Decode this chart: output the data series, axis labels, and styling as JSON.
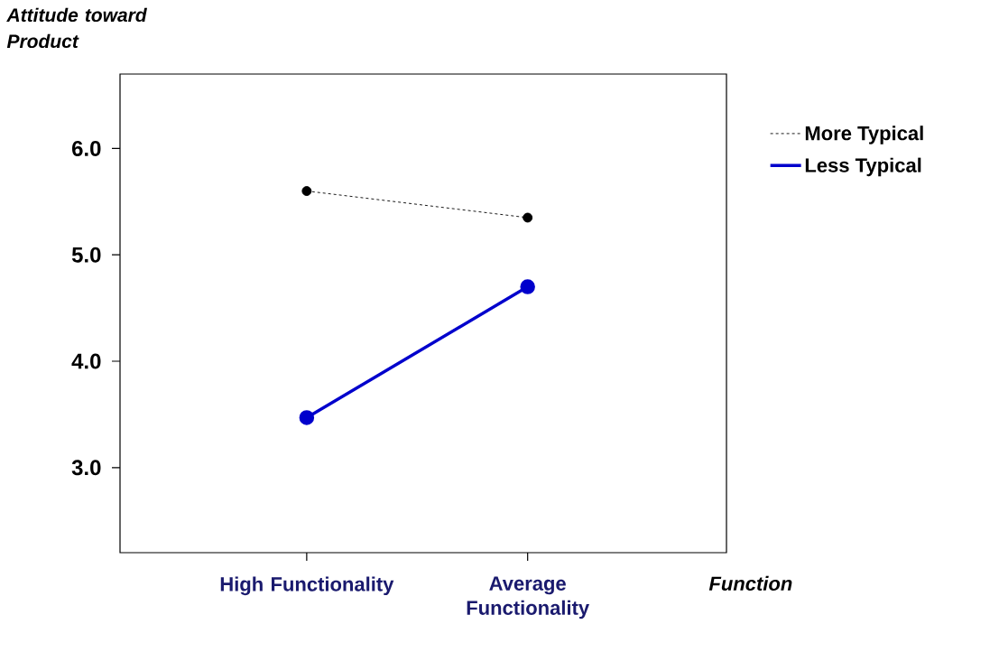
{
  "chart_data": {
    "type": "line",
    "ylabel": "Attitude toward Product",
    "xlabel": "Function",
    "categories": [
      "High Functionality",
      "Average Functionality"
    ],
    "series": [
      {
        "name": "More Typical",
        "color": "#000000",
        "values": [
          5.6,
          5.35
        ],
        "line_style": "dashed"
      },
      {
        "name": "Less Typical",
        "color": "#0000cc",
        "values": [
          3.47,
          4.7
        ],
        "line_style": "solid"
      }
    ],
    "ylim": [
      2.2,
      6.7
    ],
    "yticks": [
      {
        "value": 3,
        "label": "3.0"
      },
      {
        "value": 4,
        "label": "4.0"
      },
      {
        "value": 5,
        "label": "5.0"
      },
      {
        "value": 6,
        "label": "6.0"
      }
    ],
    "marker": "circle",
    "legend": "top right",
    "grid": false
  }
}
